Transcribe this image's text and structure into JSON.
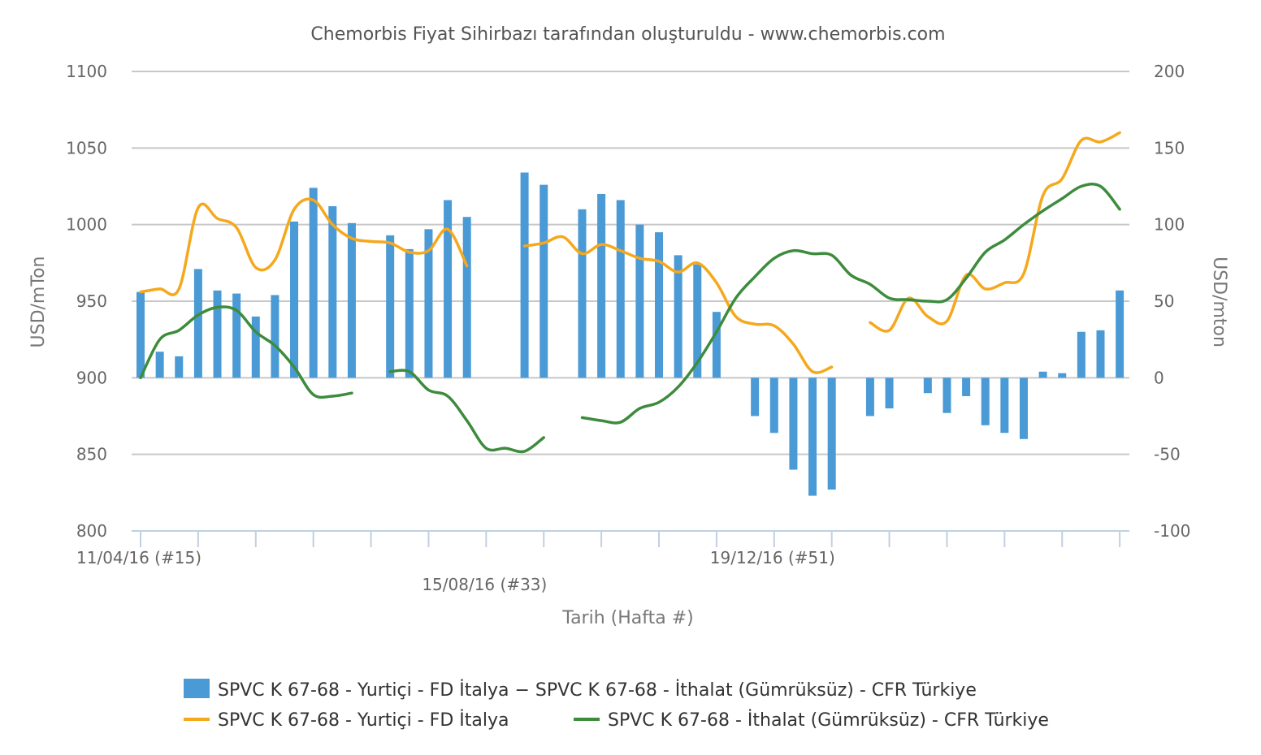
{
  "chart_data": {
    "type": "bar",
    "title": "Chemorbis Fiyat Sihirbazı tarafından oluşturuldu - www.chemorbis.com",
    "xlabel": "Tarih (Hafta #)",
    "ylabel": "USD/mTon",
    "y2label": "USD/mton",
    "ylim": [
      800,
      1100
    ],
    "y2lim": [
      -100,
      200
    ],
    "yticks": [
      "1100",
      "1050",
      "1000",
      "950",
      "900",
      "850",
      "800"
    ],
    "y2ticks": [
      "200",
      "150",
      "100",
      "50",
      "0",
      "-50",
      "-100"
    ],
    "xtick_labels": [
      "11/04/16 (#15)",
      "15/08/16 (#33)",
      "19/12/16 (#51)"
    ],
    "grid": true,
    "legend_position": "bottom",
    "colors": {
      "bar": "#4a9ad6",
      "line_italy": "#f5a81c",
      "line_turkey": "#3d8c3d",
      "grid": "#c8c8c8",
      "axis": "#c0d0e4"
    },
    "bar_series": {
      "name": "SPVC K 67-68 - Yurtiçi - FD İtalya − SPVC K 67-68 - İthalat (Gümrüksüz) - CFR Türkiye",
      "values": [
        56,
        17,
        14,
        71,
        57,
        55,
        40,
        54,
        102,
        124,
        112,
        101,
        null,
        93,
        84,
        97,
        116,
        105,
        null,
        null,
        134,
        126,
        null,
        110,
        120,
        116,
        100,
        95,
        80,
        74,
        43,
        null,
        -25,
        -36,
        -60,
        -77,
        -73,
        null,
        -25,
        -20,
        null,
        -10,
        -23,
        -12,
        -31,
        -36,
        -40,
        4,
        3,
        30,
        31,
        57
      ],
      "axis": "right"
    },
    "line_series": [
      {
        "name": "SPVC K 67-68 - Yurtiçi - FD İtalya",
        "axis": "left",
        "values": [
          956,
          958,
          958,
          1011,
          1004,
          998,
          972,
          977,
          1010,
          1016,
          1000,
          991,
          989,
          988,
          982,
          983,
          997,
          973,
          null,
          null,
          986,
          988,
          992,
          981,
          987,
          983,
          978,
          976,
          969,
          975,
          962,
          940,
          935,
          934,
          922,
          904,
          907,
          null,
          936,
          931,
          952,
          940,
          937,
          967,
          958,
          962,
          968,
          1019,
          1030,
          1055,
          1054,
          1060
        ]
      },
      {
        "name": "SPVC K 67-68 - İthalat (Gümrüksüz) - CFR Türkiye",
        "axis": "left",
        "values": [
          900,
          925,
          931,
          941,
          946,
          944,
          930,
          921,
          907,
          889,
          888,
          890,
          null,
          904,
          904,
          892,
          888,
          872,
          854,
          854,
          852,
          861,
          null,
          874,
          872,
          871,
          880,
          884,
          894,
          910,
          930,
          952,
          966,
          978,
          983,
          981,
          980,
          967,
          961,
          952,
          951,
          950,
          951,
          965,
          982,
          990,
          1000,
          1009,
          1017,
          1025,
          1025,
          1010
        ]
      }
    ]
  }
}
